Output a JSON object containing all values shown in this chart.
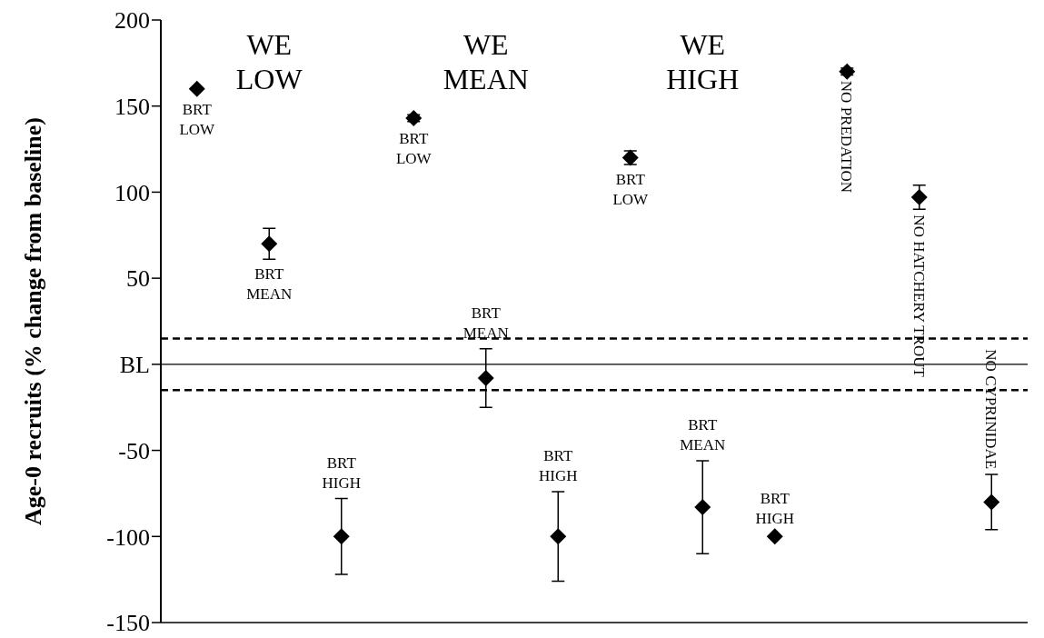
{
  "chart_data": {
    "type": "scatter",
    "ylabel": "Age-0 recruits (% change from baseline)",
    "categories": [
      null,
      null,
      null,
      null,
      null,
      null,
      null,
      null,
      null,
      null,
      null,
      null
    ],
    "values": [
      160,
      70,
      -100,
      143,
      -8,
      -100,
      120,
      -83,
      -100,
      170,
      97,
      -80
    ],
    "errors": [
      null,
      9,
      22,
      2,
      17,
      26,
      4,
      27,
      null,
      2,
      7,
      16
    ],
    "value_labels": [
      "BRT LOW",
      "BRT MEAN",
      "BRT HIGH",
      "BRT LOW",
      "BRT MEAN",
      "BRT HIGH",
      "BRT LOW",
      "BRT MEAN",
      "BRT HIGH",
      "NO PREDATION",
      "NO HATCHERY TROUT",
      "NO CYPRINIDAE"
    ],
    "color": "#000000",
    "marker": "diamond",
    "ylim": [
      -150,
      200
    ],
    "yticks": [
      -150,
      -100,
      -50,
      {
        "value": 0,
        "label": "BL"
      },
      50,
      100,
      150,
      200
    ],
    "ref_lines": [
      {
        "axis": "y",
        "value": 0,
        "line_style": "solid"
      },
      {
        "axis": "y",
        "value": 15,
        "line_style": "dashed"
      },
      {
        "axis": "y",
        "value": -15,
        "line_style": "dashed"
      }
    ],
    "annotations": [
      "WE LOW",
      "WE MEAN",
      "WE HIGH"
    ],
    "grid": false,
    "legend": false
  }
}
